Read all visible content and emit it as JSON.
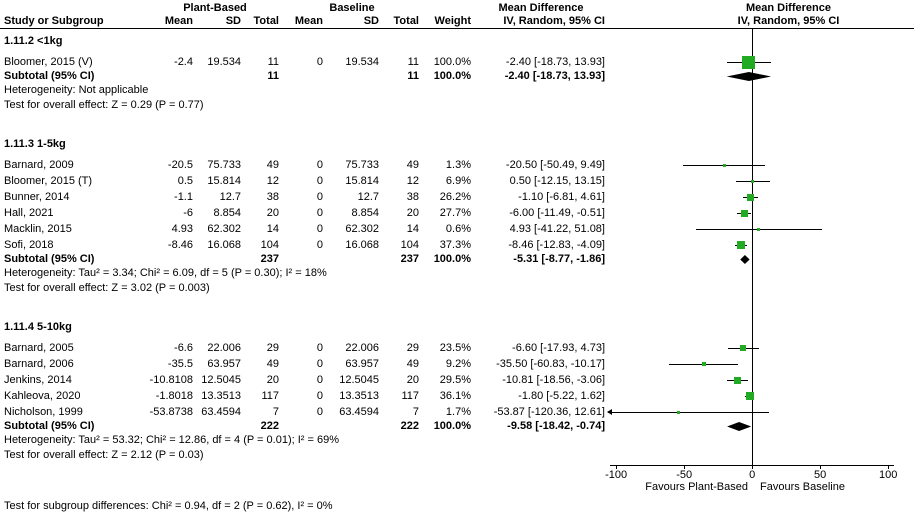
{
  "header": {
    "group1": "Plant-Based",
    "group2": "Baseline",
    "md_left": "Mean Difference",
    "md_right": "Mean Difference"
  },
  "columns": {
    "study": "Study or Subgroup",
    "mean1": "Mean",
    "sd1": "SD",
    "total1": "Total",
    "mean2": "Mean",
    "sd2": "SD",
    "total2": "Total",
    "weight": "Weight",
    "ci_left": "IV, Random, 95% CI",
    "ci_right": "IV, Random, 95% CI"
  },
  "footer": "Test for subgroup differences: Chi² = 0.94, df = 2 (P = 0.62), I² = 0%",
  "colors": {
    "square": "#22AA22",
    "diamond": "#000000",
    "line": "#000000"
  },
  "axis": {
    "ticks": [
      -100,
      -50,
      0,
      50,
      100
    ],
    "min": -106,
    "max": 119,
    "favours_left": "Favours Plant-Based",
    "favours_right": "Favours Baseline"
  },
  "chart_data": {
    "type": "scatter",
    "variant": "forest-plot",
    "effect_measure": "Mean Difference IV, Random, 95% CI",
    "sections": [
      {
        "title": "1.11.2 <1kg",
        "studies": [
          {
            "study": "Bloomer, 2015 (V)",
            "mean1": "-2.4",
            "sd1": "19.534",
            "n1": "11",
            "mean2": "0",
            "sd2": "19.534",
            "n2": "11",
            "weight": "100.0%",
            "ci": "-2.40 [-18.73, 13.93]",
            "est": -2.4,
            "lo": -18.73,
            "hi": 13.93
          }
        ],
        "subtotal": {
          "label": "Subtotal (95% CI)",
          "n1": "11",
          "n2": "11",
          "weight": "100.0%",
          "ci": "-2.40 [-18.73, 13.93]",
          "est": -2.4,
          "lo": -18.73,
          "hi": 13.93
        },
        "heterogeneity": "Heterogeneity: Not applicable",
        "test": "Test for overall effect: Z = 0.29 (P = 0.77)"
      },
      {
        "title": "1.11.3 1-5kg",
        "studies": [
          {
            "study": "Barnard, 2009",
            "mean1": "-20.5",
            "sd1": "75.733",
            "n1": "49",
            "mean2": "0",
            "sd2": "75.733",
            "n2": "49",
            "weight": "1.3%",
            "ci": "-20.50 [-50.49, 9.49]",
            "est": -20.5,
            "lo": -50.49,
            "hi": 9.49
          },
          {
            "study": "Bloomer, 2015 (T)",
            "mean1": "0.5",
            "sd1": "15.814",
            "n1": "12",
            "mean2": "0",
            "sd2": "15.814",
            "n2": "12",
            "weight": "6.9%",
            "ci": "0.50 [-12.15, 13.15]",
            "est": 0.5,
            "lo": -12.15,
            "hi": 13.15
          },
          {
            "study": "Bunner, 2014",
            "mean1": "-1.1",
            "sd1": "12.7",
            "n1": "38",
            "mean2": "0",
            "sd2": "12.7",
            "n2": "38",
            "weight": "26.2%",
            "ci": "-1.10 [-6.81, 4.61]",
            "est": -1.1,
            "lo": -6.81,
            "hi": 4.61
          },
          {
            "study": "Hall, 2021",
            "mean1": "-6",
            "sd1": "8.854",
            "n1": "20",
            "mean2": "0",
            "sd2": "8.854",
            "n2": "20",
            "weight": "27.7%",
            "ci": "-6.00 [-11.49, -0.51]",
            "est": -6,
            "lo": -11.49,
            "hi": -0.51
          },
          {
            "study": "Macklin, 2015",
            "mean1": "4.93",
            "sd1": "62.302",
            "n1": "14",
            "mean2": "0",
            "sd2": "62.302",
            "n2": "14",
            "weight": "0.6%",
            "ci": "4.93 [-41.22, 51.08]",
            "est": 4.93,
            "lo": -41.22,
            "hi": 51.08
          },
          {
            "study": "Sofi, 2018",
            "mean1": "-8.46",
            "sd1": "16.068",
            "n1": "104",
            "mean2": "0",
            "sd2": "16.068",
            "n2": "104",
            "weight": "37.3%",
            "ci": "-8.46 [-12.83, -4.09]",
            "est": -8.46,
            "lo": -12.83,
            "hi": -4.09
          }
        ],
        "subtotal": {
          "label": "Subtotal (95% CI)",
          "n1": "237",
          "n2": "237",
          "weight": "100.0%",
          "ci": "-5.31 [-8.77, -1.86]",
          "est": -5.31,
          "lo": -8.77,
          "hi": -1.86
        },
        "heterogeneity": "Heterogeneity: Tau² = 3.34; Chi² = 6.09, df = 5 (P = 0.30); I² = 18%",
        "test": "Test for overall effect: Z = 3.02 (P = 0.003)"
      },
      {
        "title": "1.11.4 5-10kg",
        "studies": [
          {
            "study": "Barnard, 2005",
            "mean1": "-6.6",
            "sd1": "22.006",
            "n1": "29",
            "mean2": "0",
            "sd2": "22.006",
            "n2": "29",
            "weight": "23.5%",
            "ci": "-6.60 [-17.93, 4.73]",
            "est": -6.6,
            "lo": -17.93,
            "hi": 4.73
          },
          {
            "study": "Barnard, 2006",
            "mean1": "-35.5",
            "sd1": "63.957",
            "n1": "49",
            "mean2": "0",
            "sd2": "63.957",
            "n2": "49",
            "weight": "9.2%",
            "ci": "-35.50 [-60.83, -10.17]",
            "est": -35.5,
            "lo": -60.83,
            "hi": -10.17
          },
          {
            "study": "Jenkins, 2014",
            "mean1": "-10.8108",
            "sd1": "12.5045",
            "n1": "20",
            "mean2": "0",
            "sd2": "12.5045",
            "n2": "20",
            "weight": "29.5%",
            "ci": "-10.81 [-18.56, -3.06]",
            "est": -10.81,
            "lo": -18.56,
            "hi": -3.06
          },
          {
            "study": "Kahleova, 2020",
            "mean1": "-1.8018",
            "sd1": "13.3513",
            "n1": "117",
            "mean2": "0",
            "sd2": "13.3513",
            "n2": "117",
            "weight": "36.1%",
            "ci": "-1.80 [-5.22, 1.62]",
            "est": -1.8,
            "lo": -5.22,
            "hi": 1.62
          },
          {
            "study": "Nicholson, 1999",
            "mean1": "-53.8738",
            "sd1": "63.4594",
            "n1": "7",
            "mean2": "0",
            "sd2": "63.4594",
            "n2": "7",
            "weight": "1.7%",
            "ci": "-53.87 [-120.36, 12.61]",
            "est": -53.87,
            "lo": -120.36,
            "hi": 12.61
          }
        ],
        "subtotal": {
          "label": "Subtotal (95% CI)",
          "n1": "222",
          "n2": "222",
          "weight": "100.0%",
          "ci": "-9.58 [-18.42, -0.74]",
          "est": -9.58,
          "lo": -18.42,
          "hi": -0.74
        },
        "heterogeneity": "Heterogeneity: Tau² = 53.32; Chi² = 12.86, df = 4 (P = 0.01); I² = 69%",
        "test": "Test for overall effect: Z = 2.12 (P = 0.03)"
      }
    ]
  }
}
